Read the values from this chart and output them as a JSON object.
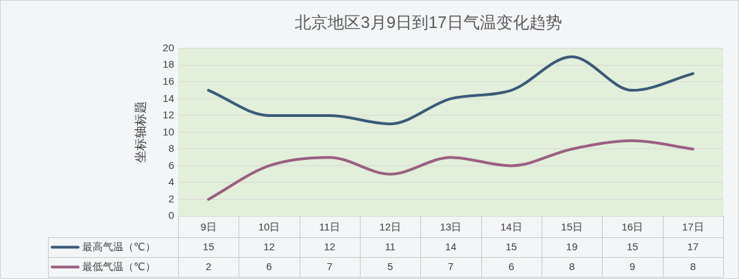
{
  "chart_data": {
    "type": "line",
    "title": "北京地区3月9日到17日气温变化趋势",
    "ylabel": "坐标轴标题",
    "categories": [
      "9日",
      "10日",
      "11日",
      "12日",
      "13日",
      "14日",
      "15日",
      "16日",
      "17日"
    ],
    "series": [
      {
        "name": "最高气温（℃）",
        "color": "#3b5a78",
        "values": [
          15,
          12,
          12,
          11,
          14,
          15,
          19,
          15,
          17
        ]
      },
      {
        "name": "最低气温（℃）",
        "color": "#9a5f80",
        "values": [
          2,
          6,
          7,
          5,
          7,
          6,
          8,
          9,
          8
        ]
      }
    ],
    "ylim": [
      0,
      20
    ],
    "yticks": [
      0,
      2,
      4,
      6,
      8,
      10,
      12,
      14,
      16,
      18,
      20
    ],
    "grid": "y",
    "data_labels": true,
    "legend": "bottom left"
  }
}
